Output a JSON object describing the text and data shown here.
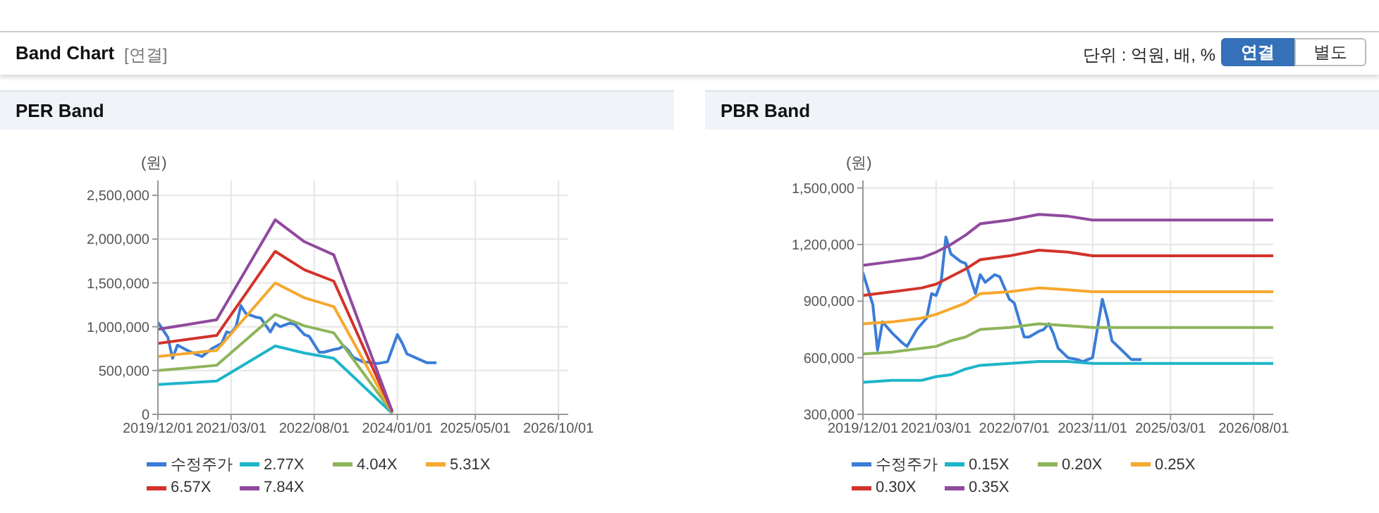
{
  "chart_data": [
    {
      "type": "line",
      "title": "PER Band",
      "ylabel": "(원)",
      "annotations": [
        "Band Chart",
        "[연결]",
        "단위 : 억원, 배, %",
        "연결",
        "별도"
      ],
      "grid": true,
      "legend": "bottom",
      "marker": "none",
      "xlim": [
        "2019-12-01",
        "2026-12-01"
      ],
      "ylim": [
        0,
        2670000
      ],
      "xticks": [
        {
          "value": "2019-12-01",
          "label": "2019/12/01"
        },
        {
          "value": "2021-03-01",
          "label": "2021/03/01"
        },
        {
          "value": "2022-08-01",
          "label": "2022/08/01"
        },
        {
          "value": "2024-01-01",
          "label": "2024/01/01"
        },
        {
          "value": "2025-05-01",
          "label": "2025/05/01"
        },
        {
          "value": "2026-10-01",
          "label": "2026/10/01"
        }
      ],
      "yticks": [
        0,
        {
          "value": 500000,
          "label": "500,000"
        },
        {
          "value": 1000000,
          "label": "1,000,000"
        },
        {
          "value": 1500000,
          "label": "1,500,000"
        },
        {
          "value": 2000000,
          "label": "2,000,000"
        },
        {
          "value": 2500000,
          "label": "2,500,000"
        }
      ],
      "x": [
        "2019-12",
        "2020-12",
        "2021-12",
        "2022-06",
        "2022-12",
        "2023-12"
      ],
      "series": [
        {
          "name": "수정주가",
          "color": "#3b7dd8",
          "x": [
            "2019-12",
            "2020-02",
            "2020-03",
            "2020-04",
            "2020-06",
            "2020-08",
            "2020-09",
            "2020-11",
            "2021-01",
            "2021-02",
            "2021-03",
            "2021-04",
            "2021-05",
            "2021-06",
            "2021-08",
            "2021-09",
            "2021-11",
            "2021-12",
            "2022-01",
            "2022-03",
            "2022-04",
            "2022-06",
            "2022-07",
            "2022-09",
            "2022-10",
            "2022-12",
            "2023-01",
            "2023-02",
            "2023-03",
            "2023-04",
            "2023-06",
            "2023-08",
            "2023-09",
            "2023-11",
            "2024-01",
            "2024-02",
            "2024-03",
            "2024-05",
            "2024-07",
            "2024-09"
          ],
          "values": [
            1050000,
            880000,
            640000,
            790000,
            730000,
            680000,
            660000,
            750000,
            810000,
            940000,
            930000,
            1000000,
            1240000,
            1150000,
            1110000,
            1100000,
            940000,
            1040000,
            1000000,
            1040000,
            1030000,
            910000,
            890000,
            710000,
            710000,
            740000,
            750000,
            780000,
            730000,
            650000,
            600000,
            590000,
            580000,
            600000,
            910000,
            810000,
            690000,
            640000,
            590000,
            590000
          ]
        },
        {
          "name": "2.77X",
          "color": "#1fb5c9",
          "values": [
            340000,
            380000,
            780000,
            700000,
            640000,
            10000
          ]
        },
        {
          "name": "4.04X",
          "color": "#8db55a",
          "values": [
            500000,
            560000,
            1140000,
            1010000,
            930000,
            20000
          ]
        },
        {
          "name": "5.31X",
          "color": "#f5a82f",
          "values": [
            660000,
            730000,
            1500000,
            1330000,
            1230000,
            20000
          ]
        },
        {
          "name": "6.57X",
          "color": "#d2332b",
          "values": [
            810000,
            900000,
            1860000,
            1650000,
            1520000,
            30000
          ]
        },
        {
          "name": "7.84X",
          "color": "#8f4a9e",
          "values": [
            970000,
            1080000,
            2220000,
            1970000,
            1820000,
            30000
          ]
        }
      ]
    },
    {
      "type": "line",
      "title": "PBR Band",
      "ylabel": "(원)",
      "grid": true,
      "legend": "bottom",
      "marker": "none",
      "xlim": [
        "2019-12-01",
        "2026-12-01"
      ],
      "ylim": [
        300000,
        1540000
      ],
      "xticks": [
        {
          "value": "2019-12-01",
          "label": "2019/12/01"
        },
        {
          "value": "2021-03-01",
          "label": "2021/03/01"
        },
        {
          "value": "2022-07-01",
          "label": "2022/07/01"
        },
        {
          "value": "2023-11-01",
          "label": "2023/11/01"
        },
        {
          "value": "2025-03-01",
          "label": "2025/03/01"
        },
        {
          "value": "2026-08-01",
          "label": "2026/08/01"
        }
      ],
      "yticks": [
        {
          "value": 300000,
          "label": "300,000"
        },
        {
          "value": 600000,
          "label": "600,000"
        },
        {
          "value": 900000,
          "label": "900,000"
        },
        {
          "value": 1200000,
          "label": "1,200,000"
        },
        {
          "value": 1500000,
          "label": "1,500,000"
        }
      ],
      "x": [
        "2019-12",
        "2020-06",
        "2020-12",
        "2021-03",
        "2021-06",
        "2021-09",
        "2021-12",
        "2022-06",
        "2022-12",
        "2023-06",
        "2023-11",
        "2026-12"
      ],
      "series": [
        {
          "name": "수정주가",
          "color": "#3b7dd8",
          "x": [
            "2019-12",
            "2020-02",
            "2020-03",
            "2020-04",
            "2020-06",
            "2020-08",
            "2020-09",
            "2020-11",
            "2021-01",
            "2021-02",
            "2021-03",
            "2021-04",
            "2021-05",
            "2021-06",
            "2021-08",
            "2021-09",
            "2021-11",
            "2021-12",
            "2022-01",
            "2022-03",
            "2022-04",
            "2022-06",
            "2022-07",
            "2022-09",
            "2022-10",
            "2022-12",
            "2023-01",
            "2023-02",
            "2023-03",
            "2023-04",
            "2023-06",
            "2023-08",
            "2023-09",
            "2023-11",
            "2024-01",
            "2024-02",
            "2024-03",
            "2024-05",
            "2024-07",
            "2024-09"
          ],
          "values": [
            1050000,
            880000,
            640000,
            790000,
            730000,
            680000,
            660000,
            750000,
            810000,
            940000,
            930000,
            1000000,
            1240000,
            1150000,
            1110000,
            1100000,
            940000,
            1040000,
            1000000,
            1040000,
            1030000,
            910000,
            890000,
            710000,
            710000,
            740000,
            750000,
            780000,
            730000,
            650000,
            600000,
            590000,
            580000,
            600000,
            910000,
            810000,
            690000,
            640000,
            590000,
            590000
          ]
        },
        {
          "name": "0.15X",
          "color": "#1fb5c9",
          "values": [
            470000,
            480000,
            480000,
            500000,
            510000,
            540000,
            560000,
            570000,
            580000,
            580000,
            570000,
            570000
          ]
        },
        {
          "name": "0.20X",
          "color": "#8db55a",
          "values": [
            620000,
            630000,
            650000,
            660000,
            690000,
            710000,
            750000,
            760000,
            780000,
            770000,
            760000,
            760000
          ]
        },
        {
          "name": "0.25X",
          "color": "#f5a82f",
          "values": [
            780000,
            790000,
            810000,
            830000,
            860000,
            890000,
            940000,
            950000,
            970000,
            960000,
            950000,
            950000
          ]
        },
        {
          "name": "0.30X",
          "color": "#d2332b",
          "values": [
            930000,
            950000,
            970000,
            990000,
            1030000,
            1070000,
            1120000,
            1140000,
            1170000,
            1160000,
            1140000,
            1140000
          ]
        },
        {
          "name": "0.35X",
          "color": "#8f4a9e",
          "values": [
            1090000,
            1110000,
            1130000,
            1160000,
            1200000,
            1250000,
            1310000,
            1330000,
            1360000,
            1350000,
            1330000,
            1330000
          ]
        }
      ]
    }
  ]
}
